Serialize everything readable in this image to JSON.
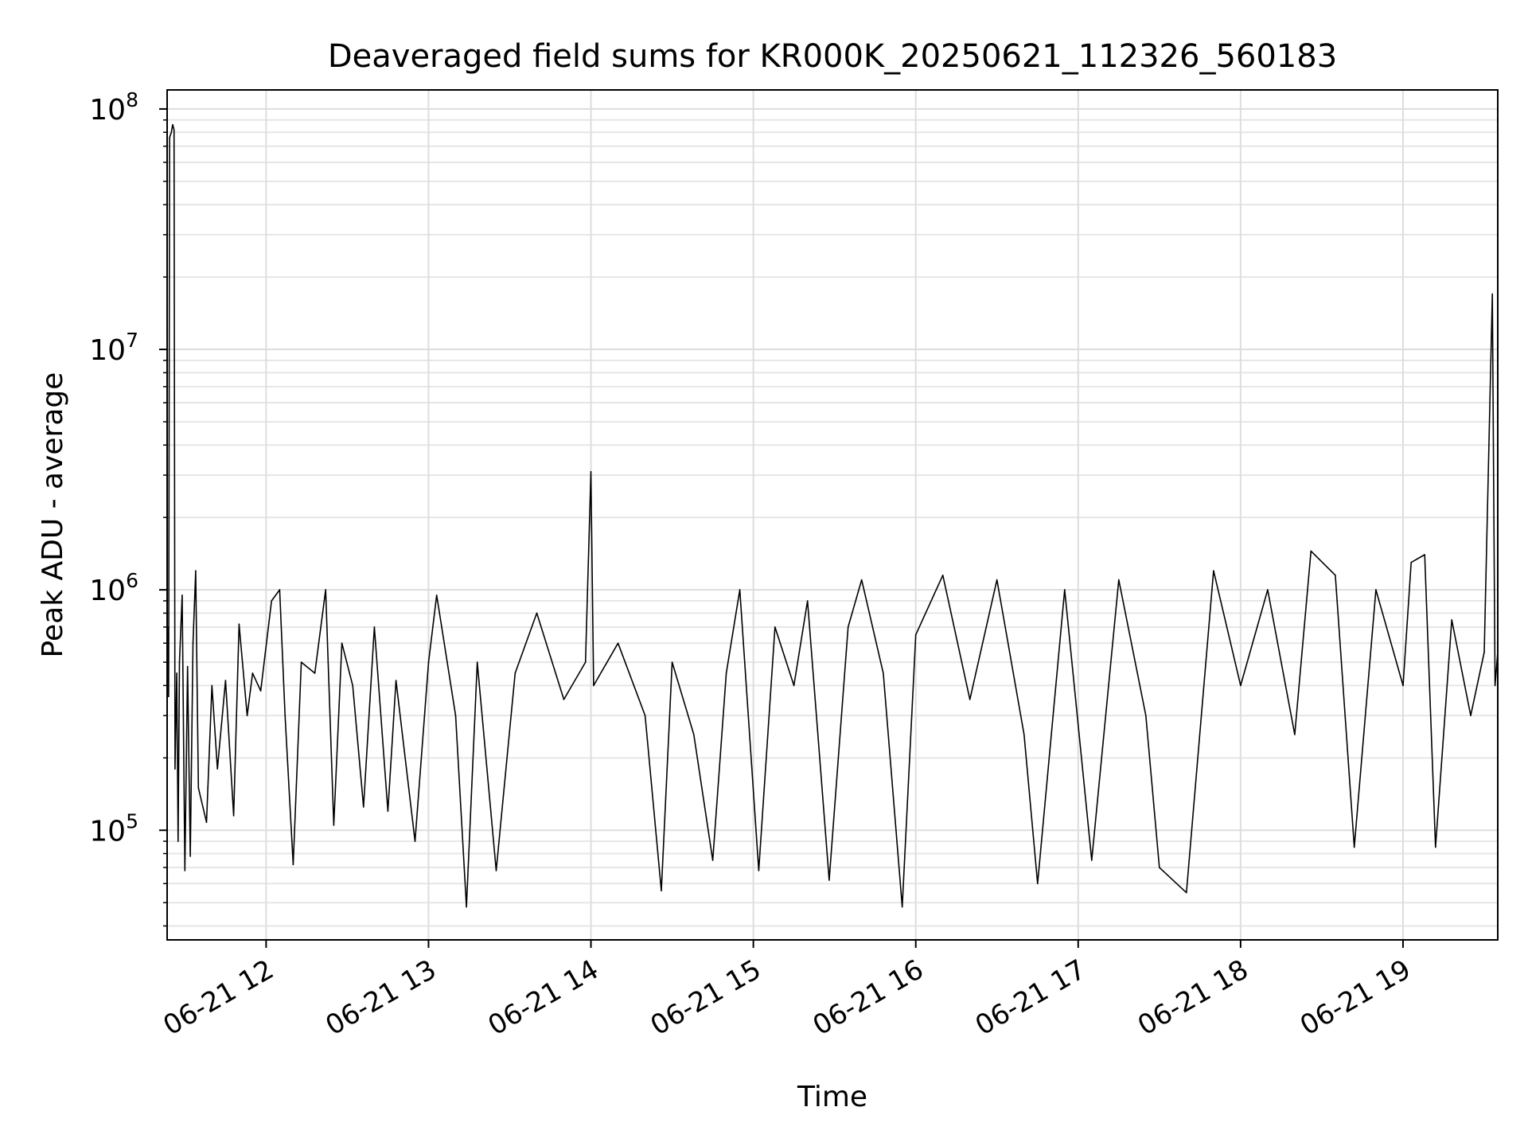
{
  "chart_data": {
    "type": "line",
    "title": "Deaveraged field sums for KR000K_20250621_112326_560183",
    "xlabel": "Time",
    "ylabel": "Peak ADU - average",
    "yscale": "log",
    "grid": true,
    "legend": "none",
    "x_range": [
      "2025-06-21 11:23:26",
      "2025-06-21 19:35:00"
    ],
    "ylim": [
      35000,
      120000000
    ],
    "x_ticks": [
      {
        "x": "2025-06-21 12:00",
        "label": "06-21 12"
      },
      {
        "x": "2025-06-21 13:00",
        "label": "06-21 13"
      },
      {
        "x": "2025-06-21 14:00",
        "label": "06-21 14"
      },
      {
        "x": "2025-06-21 15:00",
        "label": "06-21 15"
      },
      {
        "x": "2025-06-21 16:00",
        "label": "06-21 16"
      },
      {
        "x": "2025-06-21 17:00",
        "label": "06-21 17"
      },
      {
        "x": "2025-06-21 18:00",
        "label": "06-21 18"
      },
      {
        "x": "2025-06-21 19:00",
        "label": "06-21 19"
      }
    ],
    "y_ticks": [
      {
        "value": 100000,
        "base": "10",
        "exp": "5"
      },
      {
        "value": 1000000,
        "base": "10",
        "exp": "6"
      },
      {
        "value": 10000000,
        "base": "10",
        "exp": "7"
      },
      {
        "value": 100000000,
        "base": "10",
        "exp": "8"
      }
    ],
    "series": [
      {
        "color": "#000000",
        "points": [
          [
            "2025-06-21 11:23:26",
            380000
          ],
          [
            "2025-06-21 11:23:40",
            700000
          ],
          [
            "2025-06-21 11:24:00",
            360000
          ],
          [
            "2025-06-21 11:24:20",
            76000000
          ],
          [
            "2025-06-21 11:25:00",
            80000000
          ],
          [
            "2025-06-21 11:25:30",
            86000000
          ],
          [
            "2025-06-21 11:26:00",
            82000000
          ],
          [
            "2025-06-21 11:26:20",
            180000
          ],
          [
            "2025-06-21 11:27:00",
            450000
          ],
          [
            "2025-06-21 11:27:30",
            90000
          ],
          [
            "2025-06-21 11:28:00",
            500000
          ],
          [
            "2025-06-21 11:29:00",
            950000
          ],
          [
            "2025-06-21 11:30:00",
            68000
          ],
          [
            "2025-06-21 11:31:00",
            480000
          ],
          [
            "2025-06-21 11:32:00",
            78000
          ],
          [
            "2025-06-21 11:33:00",
            600000
          ],
          [
            "2025-06-21 11:34:00",
            1200000
          ],
          [
            "2025-06-21 11:35:00",
            150000
          ],
          [
            "2025-06-21 11:38:00",
            108000
          ],
          [
            "2025-06-21 11:40:00",
            400000
          ],
          [
            "2025-06-21 11:42:00",
            180000
          ],
          [
            "2025-06-21 11:45:00",
            420000
          ],
          [
            "2025-06-21 11:48:00",
            115000
          ],
          [
            "2025-06-21 11:50:00",
            720000
          ],
          [
            "2025-06-21 11:53:00",
            300000
          ],
          [
            "2025-06-21 11:55:00",
            450000
          ],
          [
            "2025-06-21 11:58:00",
            380000
          ],
          [
            "2025-06-21 12:02:00",
            900000
          ],
          [
            "2025-06-21 12:05:00",
            1000000
          ],
          [
            "2025-06-21 12:07:00",
            300000
          ],
          [
            "2025-06-21 12:10:00",
            72000
          ],
          [
            "2025-06-21 12:13:00",
            500000
          ],
          [
            "2025-06-21 12:18:00",
            450000
          ],
          [
            "2025-06-21 12:22:00",
            1000000
          ],
          [
            "2025-06-21 12:25:00",
            105000
          ],
          [
            "2025-06-21 12:28:00",
            600000
          ],
          [
            "2025-06-21 12:32:00",
            400000
          ],
          [
            "2025-06-21 12:36:00",
            125000
          ],
          [
            "2025-06-21 12:40:00",
            700000
          ],
          [
            "2025-06-21 12:45:00",
            120000
          ],
          [
            "2025-06-21 12:48:00",
            420000
          ],
          [
            "2025-06-21 12:55:00",
            90000
          ],
          [
            "2025-06-21 13:00:00",
            500000
          ],
          [
            "2025-06-21 13:03:00",
            950000
          ],
          [
            "2025-06-21 13:10:00",
            300000
          ],
          [
            "2025-06-21 13:14:00",
            48000
          ],
          [
            "2025-06-21 13:18:00",
            500000
          ],
          [
            "2025-06-21 13:25:00",
            68000
          ],
          [
            "2025-06-21 13:32:00",
            450000
          ],
          [
            "2025-06-21 13:40:00",
            800000
          ],
          [
            "2025-06-21 13:50:00",
            350000
          ],
          [
            "2025-06-21 13:58:00",
            500000
          ],
          [
            "2025-06-21 14:00:00",
            3100000
          ],
          [
            "2025-06-21 14:01:00",
            400000
          ],
          [
            "2025-06-21 14:10:00",
            600000
          ],
          [
            "2025-06-21 14:20:00",
            300000
          ],
          [
            "2025-06-21 14:26:00",
            56000
          ],
          [
            "2025-06-21 14:30:00",
            500000
          ],
          [
            "2025-06-21 14:38:00",
            250000
          ],
          [
            "2025-06-21 14:45:00",
            75000
          ],
          [
            "2025-06-21 14:50:00",
            450000
          ],
          [
            "2025-06-21 14:55:00",
            1000000
          ],
          [
            "2025-06-21 15:02:00",
            68000
          ],
          [
            "2025-06-21 15:08:00",
            700000
          ],
          [
            "2025-06-21 15:15:00",
            400000
          ],
          [
            "2025-06-21 15:20:00",
            900000
          ],
          [
            "2025-06-21 15:28:00",
            62000
          ],
          [
            "2025-06-21 15:35:00",
            700000
          ],
          [
            "2025-06-21 15:40:00",
            1100000
          ],
          [
            "2025-06-21 15:48:00",
            450000
          ],
          [
            "2025-06-21 15:55:00",
            48000
          ],
          [
            "2025-06-21 16:00:00",
            650000
          ],
          [
            "2025-06-21 16:10:00",
            1150000
          ],
          [
            "2025-06-21 16:20:00",
            350000
          ],
          [
            "2025-06-21 16:30:00",
            1100000
          ],
          [
            "2025-06-21 16:40:00",
            250000
          ],
          [
            "2025-06-21 16:45:00",
            60000
          ],
          [
            "2025-06-21 16:55:00",
            1000000
          ],
          [
            "2025-06-21 17:05:00",
            75000
          ],
          [
            "2025-06-21 17:15:00",
            1100000
          ],
          [
            "2025-06-21 17:25:00",
            300000
          ],
          [
            "2025-06-21 17:30:00",
            70000
          ],
          [
            "2025-06-21 17:40:00",
            55000
          ],
          [
            "2025-06-21 17:50:00",
            1200000
          ],
          [
            "2025-06-21 18:00:00",
            400000
          ],
          [
            "2025-06-21 18:10:00",
            1000000
          ],
          [
            "2025-06-21 18:20:00",
            250000
          ],
          [
            "2025-06-21 18:26:00",
            1450000
          ],
          [
            "2025-06-21 18:35:00",
            1150000
          ],
          [
            "2025-06-21 18:42:00",
            85000
          ],
          [
            "2025-06-21 18:50:00",
            1000000
          ],
          [
            "2025-06-21 19:00:00",
            400000
          ],
          [
            "2025-06-21 19:03:00",
            1300000
          ],
          [
            "2025-06-21 19:08:00",
            1400000
          ],
          [
            "2025-06-21 19:12:00",
            85000
          ],
          [
            "2025-06-21 19:18:00",
            750000
          ],
          [
            "2025-06-21 19:25:00",
            300000
          ],
          [
            "2025-06-21 19:30:00",
            550000
          ],
          [
            "2025-06-21 19:33:00",
            17000000
          ],
          [
            "2025-06-21 19:34:00",
            400000
          ],
          [
            "2025-06-21 19:35:00",
            550000
          ]
        ]
      }
    ]
  }
}
